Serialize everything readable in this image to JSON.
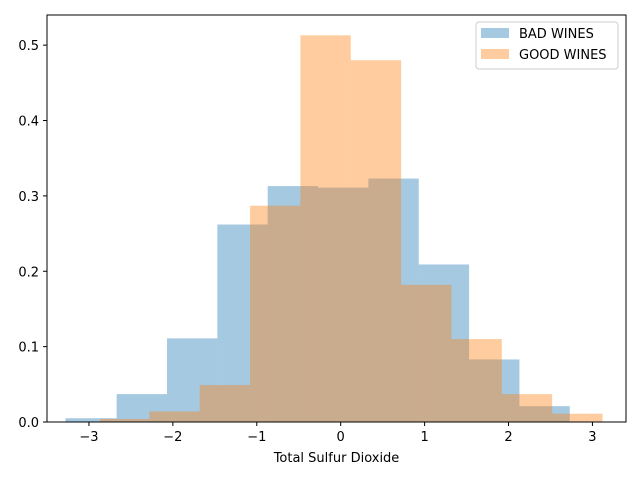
{
  "chart_data": {
    "type": "histogram",
    "title": "",
    "xlabel": "Total Sulfur Dioxide",
    "ylabel": "",
    "xlim": [
      -3.5,
      3.4
    ],
    "ylim": [
      0,
      0.54
    ],
    "xticks": [
      -3,
      -2,
      -1,
      0,
      1,
      2,
      3
    ],
    "yticks": [
      0.0,
      0.1,
      0.2,
      0.3,
      0.4,
      0.5
    ],
    "grid": false,
    "legend_position": "top-right",
    "series": [
      {
        "name": "BAD WINES",
        "color": "#1f77b4",
        "alpha": 0.4,
        "edges": [
          -3.28,
          -2.67,
          -2.07,
          -1.47,
          -0.87,
          -0.27,
          0.33,
          0.93,
          1.53,
          2.13,
          2.73
        ],
        "heights": [
          0.005,
          0.037,
          0.111,
          0.262,
          0.313,
          0.311,
          0.323,
          0.209,
          0.083,
          0.021
        ]
      },
      {
        "name": "GOOD WINES",
        "color": "#ff7f0e",
        "alpha": 0.4,
        "edges": [
          -2.87,
          -2.28,
          -1.68,
          -1.08,
          -0.48,
          0.12,
          0.72,
          1.32,
          1.92,
          2.52,
          3.12
        ],
        "heights": [
          0.004,
          0.014,
          0.049,
          0.287,
          0.513,
          0.48,
          0.182,
          0.11,
          0.037,
          0.011
        ]
      }
    ]
  }
}
